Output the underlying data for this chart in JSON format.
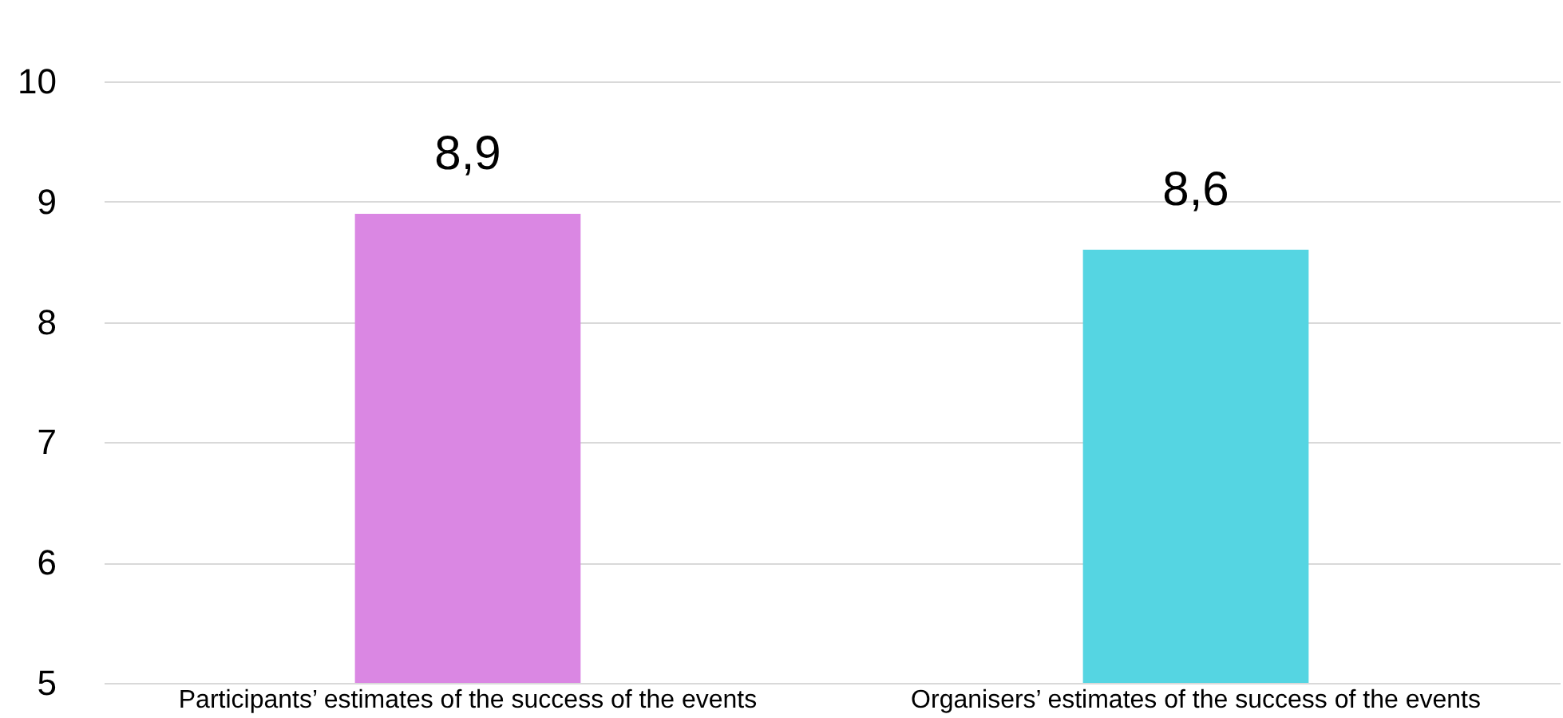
{
  "chart_data": {
    "type": "bar",
    "categories": [
      "Participants’ estimates of the success of the events",
      "Organisers’ estimates of the success of the events"
    ],
    "values": [
      8.9,
      8.6
    ],
    "colors": [
      "#da87e3",
      "#55d5e2"
    ],
    "value_labels": [
      "8,9",
      "8,6"
    ],
    "ylim": [
      5,
      10
    ],
    "yticks": [
      5,
      6,
      7,
      8,
      9,
      10
    ],
    "grid": "y",
    "legend": false
  }
}
